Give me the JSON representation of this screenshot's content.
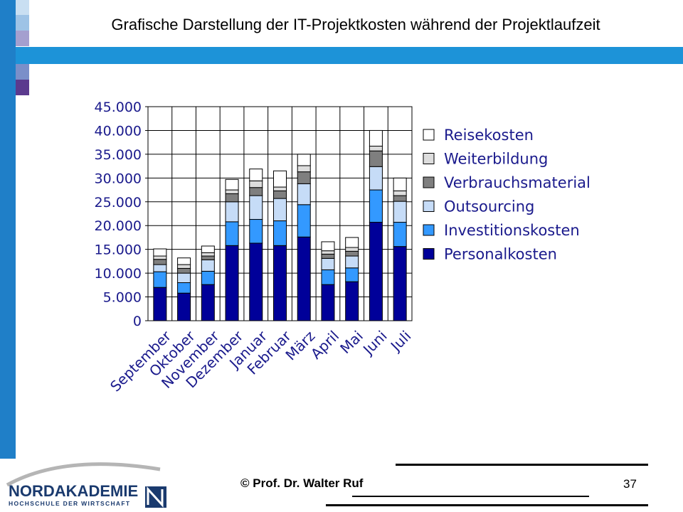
{
  "slide": {
    "title": "Grafische Darstellung der IT-Projektkosten während der Projektlaufzeit",
    "copyright": "© Prof. Dr. Walter Ruf",
    "page_number": "37"
  },
  "logo": {
    "name": "NORDAKADEMIE",
    "subtitle": "HOCHSCHULE DER WIRTSCHAFT"
  },
  "colors": {
    "sidebar": "#1f7fc8",
    "band": "#1d93d8",
    "squares": [
      "#c9dff2",
      "#9ec3e6",
      "#a49fcf",
      "#7a8fc9",
      "#5b3a8e"
    ]
  },
  "chart_data": {
    "type": "bar",
    "stacked": true,
    "title": "",
    "xlabel": "",
    "ylabel": "",
    "ylim": [
      0,
      45000
    ],
    "yticks": [
      "0",
      "5.000",
      "10.000",
      "15.000",
      "20.000",
      "25.000",
      "30.000",
      "35.000",
      "40.000",
      "45.000"
    ],
    "grid": true,
    "legend_position": "right",
    "categories": [
      "September",
      "Oktober",
      "November",
      "Dezember",
      "Januar",
      "Februar",
      "März",
      "April",
      "Mai",
      "Juni",
      "Juli"
    ],
    "series": [
      {
        "name": "Personalkosten",
        "color": "#000099",
        "values": [
          7000,
          5800,
          7600,
          15800,
          16300,
          15800,
          17600,
          7600,
          8200,
          20700,
          15600
        ]
      },
      {
        "name": "Investitionskosten",
        "color": "#3399ff",
        "values": [
          3300,
          2200,
          2800,
          5000,
          5000,
          5200,
          6800,
          3100,
          2900,
          6800,
          5100
        ]
      },
      {
        "name": "Outsourcing",
        "color": "#c6dcf7",
        "values": [
          1500,
          2000,
          2400,
          4200,
          5000,
          4700,
          4400,
          2400,
          2500,
          4900,
          4400
        ]
      },
      {
        "name": "Verbrauchsmaterial",
        "color": "#7f7f7f",
        "values": [
          1100,
          1000,
          800,
          1700,
          1700,
          1600,
          2500,
          900,
          1000,
          3300,
          1200
        ]
      },
      {
        "name": "Weiterbildung",
        "color": "#dddddd",
        "values": [
          700,
          800,
          700,
          800,
          1400,
          800,
          1300,
          700,
          800,
          1000,
          1000
        ]
      },
      {
        "name": "Reisekosten",
        "color": "#ffffff",
        "values": [
          1500,
          1400,
          1400,
          2200,
          2500,
          3400,
          2400,
          1900,
          2100,
          3300,
          2700
        ]
      }
    ]
  }
}
